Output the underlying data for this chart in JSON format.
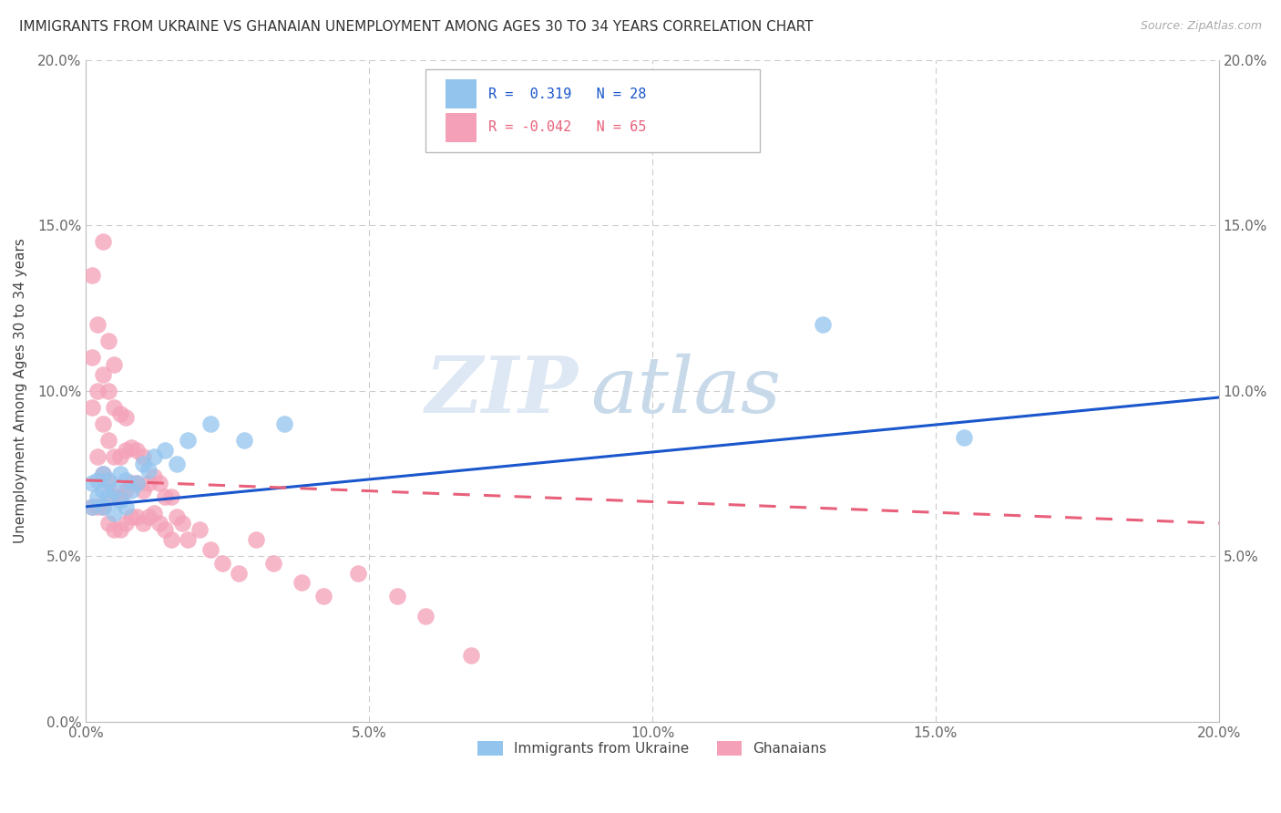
{
  "title": "IMMIGRANTS FROM UKRAINE VS GHANAIAN UNEMPLOYMENT AMONG AGES 30 TO 34 YEARS CORRELATION CHART",
  "source": "Source: ZipAtlas.com",
  "ylabel": "Unemployment Among Ages 30 to 34 years",
  "xlim": [
    0,
    0.2
  ],
  "ylim": [
    0,
    0.2
  ],
  "xticks": [
    0.0,
    0.05,
    0.1,
    0.15,
    0.2
  ],
  "yticks": [
    0.0,
    0.05,
    0.1,
    0.15,
    0.2
  ],
  "right_yticks": [
    0.05,
    0.1,
    0.15,
    0.2
  ],
  "watermark_part1": "ZIP",
  "watermark_part2": "atlas",
  "blue_color": "#93C4EE",
  "pink_color": "#F4A0B8",
  "blue_line_color": "#1A56CC",
  "pink_line_color": "#E8607A",
  "legend_label_blue": "Immigrants from Ukraine",
  "legend_label_pink": "Ghanaians",
  "r_blue": 0.319,
  "n_blue": 28,
  "r_pink": -0.042,
  "n_pink": 65,
  "blue_line_x0": 0.0,
  "blue_line_y0": 0.065,
  "blue_line_x1": 0.2,
  "blue_line_y1": 0.098,
  "pink_line_x0": 0.0,
  "pink_line_y0": 0.073,
  "pink_line_x1": 0.2,
  "pink_line_y1": 0.06,
  "blue_scatter_x": [
    0.001,
    0.001,
    0.002,
    0.002,
    0.003,
    0.003,
    0.003,
    0.004,
    0.004,
    0.005,
    0.005,
    0.006,
    0.006,
    0.007,
    0.007,
    0.008,
    0.009,
    0.01,
    0.011,
    0.012,
    0.014,
    0.016,
    0.018,
    0.022,
    0.028,
    0.035,
    0.13,
    0.155
  ],
  "blue_scatter_y": [
    0.065,
    0.072,
    0.068,
    0.073,
    0.065,
    0.07,
    0.075,
    0.068,
    0.073,
    0.063,
    0.07,
    0.067,
    0.075,
    0.065,
    0.073,
    0.07,
    0.072,
    0.078,
    0.076,
    0.08,
    0.082,
    0.078,
    0.085,
    0.09,
    0.085,
    0.09,
    0.12,
    0.086
  ],
  "pink_scatter_x": [
    0.001,
    0.001,
    0.001,
    0.001,
    0.002,
    0.002,
    0.002,
    0.002,
    0.003,
    0.003,
    0.003,
    0.003,
    0.003,
    0.004,
    0.004,
    0.004,
    0.004,
    0.004,
    0.005,
    0.005,
    0.005,
    0.005,
    0.005,
    0.006,
    0.006,
    0.006,
    0.006,
    0.007,
    0.007,
    0.007,
    0.007,
    0.008,
    0.008,
    0.008,
    0.009,
    0.009,
    0.009,
    0.01,
    0.01,
    0.01,
    0.011,
    0.011,
    0.012,
    0.012,
    0.013,
    0.013,
    0.014,
    0.014,
    0.015,
    0.015,
    0.016,
    0.017,
    0.018,
    0.02,
    0.022,
    0.024,
    0.027,
    0.03,
    0.033,
    0.038,
    0.042,
    0.048,
    0.055,
    0.06,
    0.068
  ],
  "pink_scatter_y": [
    0.065,
    0.095,
    0.11,
    0.135,
    0.065,
    0.08,
    0.1,
    0.12,
    0.065,
    0.075,
    0.09,
    0.105,
    0.145,
    0.06,
    0.072,
    0.085,
    0.1,
    0.115,
    0.058,
    0.068,
    0.08,
    0.095,
    0.108,
    0.058,
    0.068,
    0.08,
    0.093,
    0.06,
    0.07,
    0.082,
    0.092,
    0.062,
    0.072,
    0.083,
    0.062,
    0.072,
    0.082,
    0.06,
    0.07,
    0.08,
    0.062,
    0.072,
    0.063,
    0.074,
    0.06,
    0.072,
    0.058,
    0.068,
    0.055,
    0.068,
    0.062,
    0.06,
    0.055,
    0.058,
    0.052,
    0.048,
    0.045,
    0.055,
    0.048,
    0.042,
    0.038,
    0.045,
    0.038,
    0.032,
    0.02
  ]
}
